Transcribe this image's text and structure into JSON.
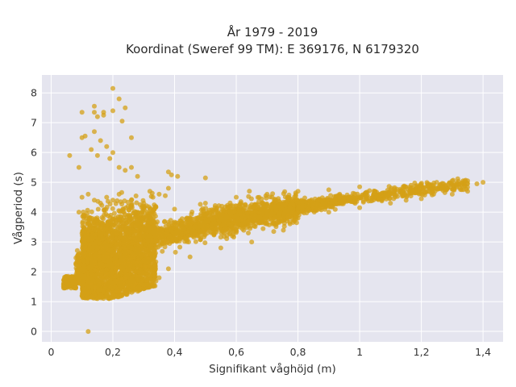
{
  "chart_data": {
    "type": "scatter",
    "title_lines": [
      "År 1979 - 2019",
      "Koordinat (Sweref 99 TM): E 369176, N 6179320"
    ],
    "xlabel": "Signifikant våghöjd (m)",
    "ylabel": "Vågperiod (s)",
    "xlim": [
      -0.03,
      1.465
    ],
    "ylim": [
      -0.35,
      8.6
    ],
    "x_ticks": [
      0,
      0.2,
      0.4,
      0.6,
      0.8,
      1,
      1.2,
      1.4
    ],
    "x_tick_labels": [
      "0",
      "0,2",
      "0,4",
      "0,6",
      "0,8",
      "1",
      "1,2",
      "1,4"
    ],
    "y_ticks": [
      0,
      1,
      2,
      3,
      4,
      5,
      6,
      7,
      8
    ],
    "y_tick_labels": [
      "0",
      "1",
      "2",
      "3",
      "4",
      "5",
      "6",
      "7",
      "8"
    ],
    "grid": true,
    "colors": {
      "background": "#e5e5ef",
      "grid": "#ffffff",
      "marker": "#d4a017"
    },
    "series": [
      {
        "points": [
          [
            0.12,
            0.0
          ],
          [
            0.04,
            1.5
          ],
          [
            0.06,
            1.55
          ],
          [
            0.08,
            1.45
          ],
          [
            0.07,
            1.6
          ],
          [
            0.09,
            1.7
          ],
          [
            0.1,
            1.2
          ],
          [
            0.12,
            1.15
          ],
          [
            0.15,
            1.1
          ],
          [
            0.18,
            1.2
          ],
          [
            0.2,
            1.3
          ],
          [
            0.25,
            1.5
          ],
          [
            0.3,
            1.55
          ],
          [
            0.35,
            1.8
          ],
          [
            0.38,
            2.1
          ],
          [
            0.45,
            2.5
          ],
          [
            0.55,
            2.8
          ],
          [
            0.65,
            3.0
          ],
          [
            0.09,
            4.0
          ],
          [
            0.1,
            4.5
          ],
          [
            0.12,
            4.6
          ],
          [
            0.14,
            4.4
          ],
          [
            0.16,
            4.3
          ],
          [
            0.18,
            4.5
          ],
          [
            0.2,
            4.4
          ],
          [
            0.22,
            4.6
          ],
          [
            0.26,
            4.4
          ],
          [
            0.3,
            4.3
          ],
          [
            0.33,
            4.5
          ],
          [
            0.06,
            5.9
          ],
          [
            0.09,
            5.5
          ],
          [
            0.1,
            6.5
          ],
          [
            0.11,
            6.55
          ],
          [
            0.13,
            6.1
          ],
          [
            0.14,
            6.7
          ],
          [
            0.15,
            7.2
          ],
          [
            0.14,
            7.35
          ],
          [
            0.14,
            7.55
          ],
          [
            0.1,
            7.35
          ],
          [
            0.17,
            7.25
          ],
          [
            0.17,
            7.35
          ],
          [
            0.2,
            8.15
          ],
          [
            0.2,
            7.4
          ],
          [
            0.22,
            7.8
          ],
          [
            0.24,
            7.5
          ],
          [
            0.23,
            7.05
          ],
          [
            0.26,
            6.5
          ],
          [
            0.2,
            6.0
          ],
          [
            0.19,
            5.8
          ],
          [
            0.18,
            6.2
          ],
          [
            0.15,
            5.9
          ],
          [
            0.16,
            6.4
          ],
          [
            0.22,
            5.5
          ],
          [
            0.24,
            5.4
          ],
          [
            0.26,
            5.5
          ],
          [
            0.28,
            5.2
          ],
          [
            0.38,
            5.35
          ],
          [
            0.39,
            5.25
          ],
          [
            0.41,
            5.2
          ],
          [
            0.5,
            5.15
          ],
          [
            0.32,
            4.7
          ],
          [
            0.35,
            4.6
          ],
          [
            0.37,
            4.55
          ],
          [
            0.38,
            4.8
          ],
          [
            0.4,
            4.1
          ],
          [
            0.5,
            4.3
          ],
          [
            0.6,
            4.5
          ],
          [
            0.7,
            4.6
          ],
          [
            0.8,
            4.7
          ],
          [
            0.9,
            4.75
          ],
          [
            1.0,
            4.85
          ],
          [
            1.05,
            4.7
          ],
          [
            1.15,
            4.85
          ],
          [
            1.2,
            4.9
          ],
          [
            1.22,
            4.95
          ],
          [
            1.25,
            5.0
          ],
          [
            1.3,
            5.05
          ],
          [
            1.32,
            4.95
          ],
          [
            1.35,
            5.05
          ],
          [
            1.38,
            4.95
          ],
          [
            1.4,
            5.0
          ],
          [
            0.6,
            3.4
          ],
          [
            0.7,
            3.6
          ],
          [
            0.8,
            3.8
          ],
          [
            0.9,
            4.0
          ],
          [
            1.0,
            4.15
          ],
          [
            1.1,
            4.3
          ],
          [
            1.2,
            4.45
          ],
          [
            1.3,
            4.6
          ],
          [
            1.35,
            4.7
          ]
        ]
      }
    ]
  }
}
